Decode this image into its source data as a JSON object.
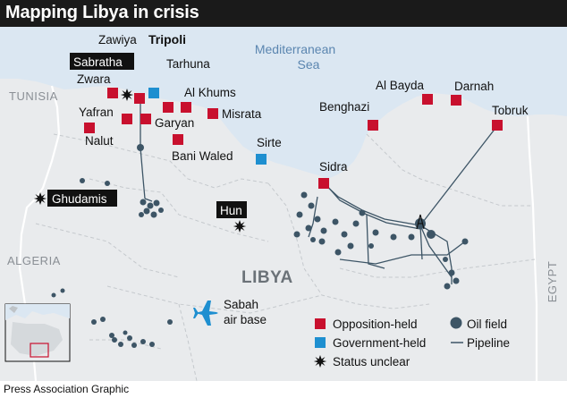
{
  "title": "Mapping Libya in crisis",
  "credit": "Press Association Graphic",
  "colors": {
    "sea": "#dbe7f2",
    "land": "#e9ebed",
    "border": "#ffffff",
    "opposition": "#c8102e",
    "government": "#1e8fd0",
    "oil_field": "#3d5566",
    "pipeline": "#3d5566",
    "title_bar": "#1a1a1a"
  },
  "sea_label": [
    "Mediterranean",
    "Sea"
  ],
  "countries": {
    "tunisia": "TUNISIA",
    "algeria": "ALGERIA",
    "egypt": "EGYPT",
    "libya": "LIBYA"
  },
  "cities": {
    "zawiya": "Zawiya",
    "tripoli": "Tripoli",
    "sabratha": "Sabratha",
    "tarhuna": "Tarhuna",
    "zwara": "Zwara",
    "al_khums": "Al Khums",
    "yafran": "Yafran",
    "garyan": "Garyan",
    "misrata": "Misrata",
    "nalut": "Nalut",
    "bani_waled": "Bani Waled",
    "sirte": "Sirte",
    "benghazi": "Benghazi",
    "al_bayda": "Al Bayda",
    "darnah": "Darnah",
    "tobruk": "Tobruk",
    "sidra": "Sidra",
    "ghudamis": "Ghudamis",
    "hun": "Hun",
    "sabah_air_base": [
      "Sabah",
      "air base"
    ]
  },
  "legend": {
    "opposition": "Opposition-held",
    "government": "Government-held",
    "unclear": "Status unclear",
    "oil_field": "Oil field",
    "pipeline": "Pipeline"
  },
  "icons": {
    "opposition": "red-square-icon",
    "government": "blue-square-icon",
    "unclear": "starburst-icon",
    "oil_field": "dark-circle-icon",
    "pipeline": "line-icon",
    "air_base": "fighter-jet-icon",
    "inset": "locator-map-icon"
  }
}
